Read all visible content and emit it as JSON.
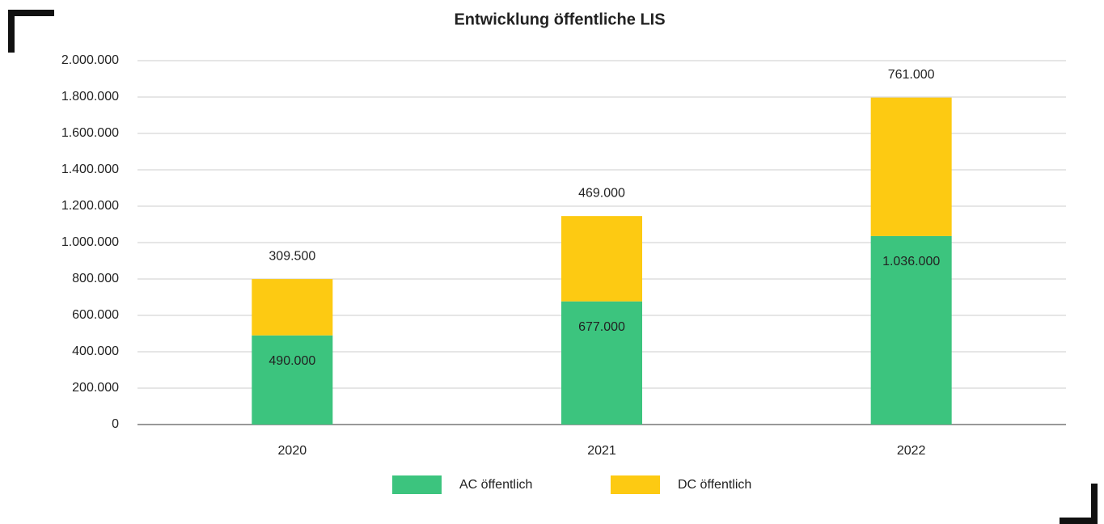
{
  "chart_data": {
    "type": "stacked_bar",
    "title": "Entwicklung öffentliche LIS",
    "categories": [
      "2020",
      "2021",
      "2022"
    ],
    "series": [
      {
        "name": "AC öffentlich",
        "color": "#3cc47e",
        "values": [
          490000,
          677000,
          1036000
        ],
        "value_labels": [
          "490.000",
          "677.000",
          "1.036.000"
        ]
      },
      {
        "name": "DC öffentlich",
        "color": "#fdca12",
        "values": [
          309500,
          469000,
          761000
        ],
        "value_labels": [
          "309.500",
          "469.000",
          "761.000"
        ]
      }
    ],
    "ylim": [
      0,
      2000000
    ],
    "yticks": [
      0,
      {
        "value": 200000,
        "label": "200.000"
      },
      {
        "value": 400000,
        "label": "400.000"
      },
      {
        "value": 600000,
        "label": "600.000"
      },
      {
        "value": 800000,
        "label": "800.000"
      },
      {
        "value": 1000000,
        "label": "1.000.000"
      },
      {
        "value": 1200000,
        "label": "1.200.000"
      },
      {
        "value": 1400000,
        "label": "1.400.000"
      },
      {
        "value": 1600000,
        "label": "1.600.000"
      },
      {
        "value": 1800000,
        "label": "1.800.000"
      },
      {
        "value": 2000000,
        "label": "2.000.000"
      }
    ],
    "grid": true,
    "legend": "bottom"
  }
}
